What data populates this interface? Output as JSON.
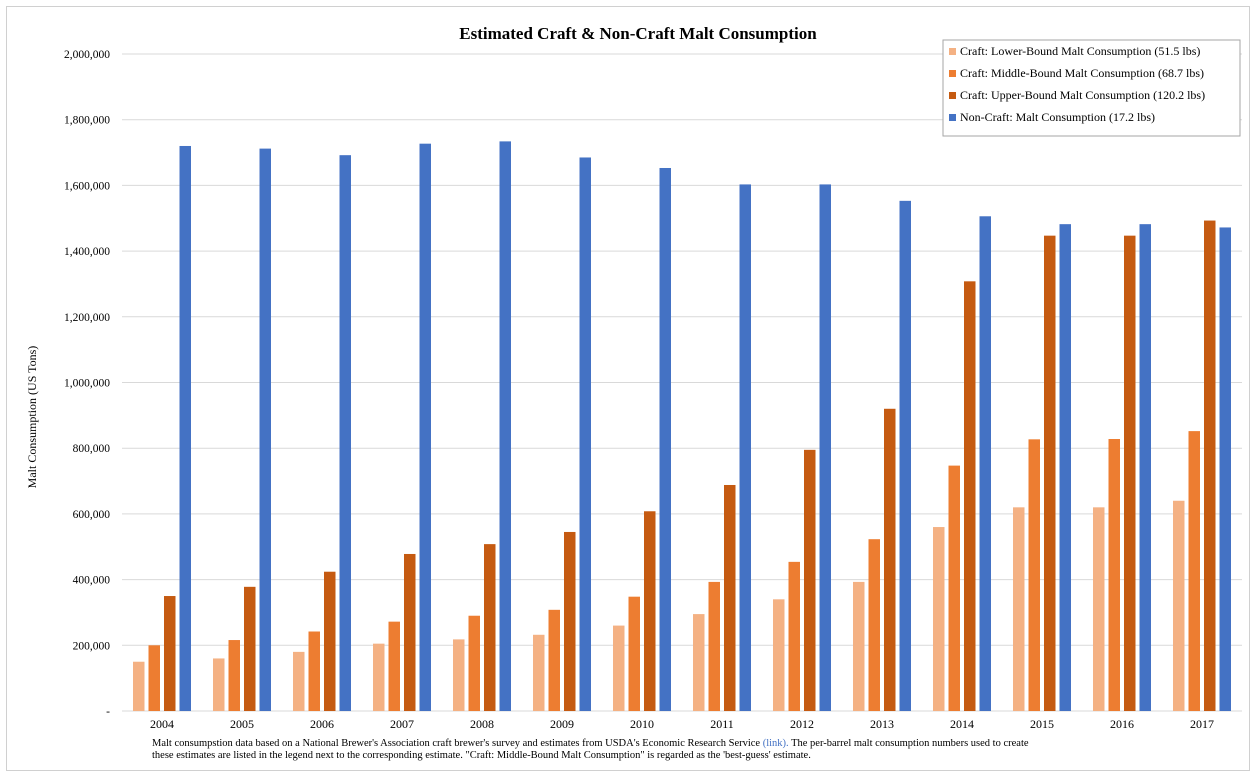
{
  "chart_data": {
    "type": "bar",
    "title": "Estimated Craft & Non-Craft Malt Consumption",
    "xlabel": "",
    "ylabel": "Malt Consumption (US Tons)",
    "ylim": [
      0,
      2000000
    ],
    "yticks": [
      0,
      200000,
      400000,
      600000,
      800000,
      1000000,
      1200000,
      1400000,
      1600000,
      1800000,
      2000000
    ],
    "ytick_labels": [
      "-",
      "200,000",
      "400,000",
      "600,000",
      "800,000",
      "1,000,000",
      "1,200,000",
      "1,400,000",
      "1,600,000",
      "1,800,000",
      "2,000,000"
    ],
    "grid": true,
    "legend_position": "top-right",
    "categories": [
      "2004",
      "2005",
      "2006",
      "2007",
      "2008",
      "2009",
      "2010",
      "2011",
      "2012",
      "2013",
      "2014",
      "2015",
      "2016",
      "2017"
    ],
    "series": [
      {
        "name": "Craft: Lower-Bound Malt Consumption (51.5 lbs)",
        "color": "#f4b183",
        "values": [
          150000,
          160000,
          180000,
          205000,
          218000,
          232000,
          260000,
          295000,
          340000,
          393000,
          560000,
          620000,
          620000,
          640000
        ]
      },
      {
        "name": "Craft: Middle-Bound Malt Consumption (68.7 lbs)",
        "color": "#ed7d31",
        "values": [
          200000,
          216000,
          242000,
          272000,
          290000,
          308000,
          348000,
          393000,
          454000,
          523000,
          747000,
          827000,
          828000,
          852000
        ]
      },
      {
        "name": "Craft: Upper-Bound Malt Consumption (120.2 lbs)",
        "color": "#c55a11",
        "values": [
          350000,
          378000,
          424000,
          478000,
          508000,
          545000,
          608000,
          688000,
          795000,
          920000,
          1308000,
          1447000,
          1447000,
          1493000
        ]
      },
      {
        "name": "Non-Craft: Malt Consumption (17.2 lbs)",
        "color": "#4472c4",
        "values": [
          1720000,
          1712000,
          1692000,
          1727000,
          1734000,
          1685000,
          1653000,
          1603000,
          1603000,
          1553000,
          1506000,
          1482000,
          1482000,
          1472000
        ]
      }
    ]
  },
  "footnote": {
    "line1_before": "Malt consumpstion data based on a National Brewer's Association craft brewer's survey and estimates from USDA's Economic Research Service ",
    "link": "(link).",
    "line1_after": " The per-barrel malt consumption numbers used to create",
    "line2": "these estimates are listed in the legend next to the corresponding estimate. \"Craft: Middle-Bound Malt Consumption\" is regarded as the 'best-guess' estimate."
  }
}
